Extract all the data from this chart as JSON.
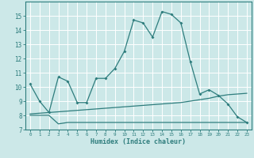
{
  "xlabel": "Humidex (Indice chaleur)",
  "x_values": [
    0,
    1,
    2,
    3,
    4,
    5,
    6,
    7,
    8,
    9,
    10,
    11,
    12,
    13,
    14,
    15,
    16,
    17,
    18,
    19,
    20,
    21,
    22,
    23
  ],
  "line1_y": [
    10.2,
    9.0,
    8.2,
    10.7,
    10.4,
    8.9,
    8.9,
    10.6,
    10.6,
    11.3,
    12.5,
    14.7,
    14.5,
    13.5,
    15.3,
    15.1,
    14.5,
    11.8,
    9.5,
    9.8,
    9.4,
    8.8,
    7.9,
    7.5
  ],
  "line2_y": [
    8.1,
    8.15,
    8.2,
    8.25,
    8.3,
    8.35,
    8.4,
    8.45,
    8.5,
    8.55,
    8.6,
    8.65,
    8.7,
    8.75,
    8.8,
    8.85,
    8.9,
    9.0,
    9.1,
    9.2,
    9.35,
    9.45,
    9.5,
    9.55
  ],
  "line3_y": [
    8.0,
    8.0,
    8.0,
    7.4,
    7.5,
    7.5,
    7.5,
    7.5,
    7.5,
    7.5,
    7.5,
    7.5,
    7.5,
    7.5,
    7.5,
    7.5,
    7.5,
    7.5,
    7.5,
    7.5,
    7.5,
    7.5,
    7.5,
    7.5
  ],
  "line_color": "#2e7d7d",
  "bg_color": "#cce8e8",
  "grid_color": "#ffffff",
  "ylim": [
    7,
    16
  ],
  "xlim": [
    -0.5,
    23.5
  ],
  "yticks": [
    7,
    8,
    9,
    10,
    11,
    12,
    13,
    14,
    15
  ]
}
